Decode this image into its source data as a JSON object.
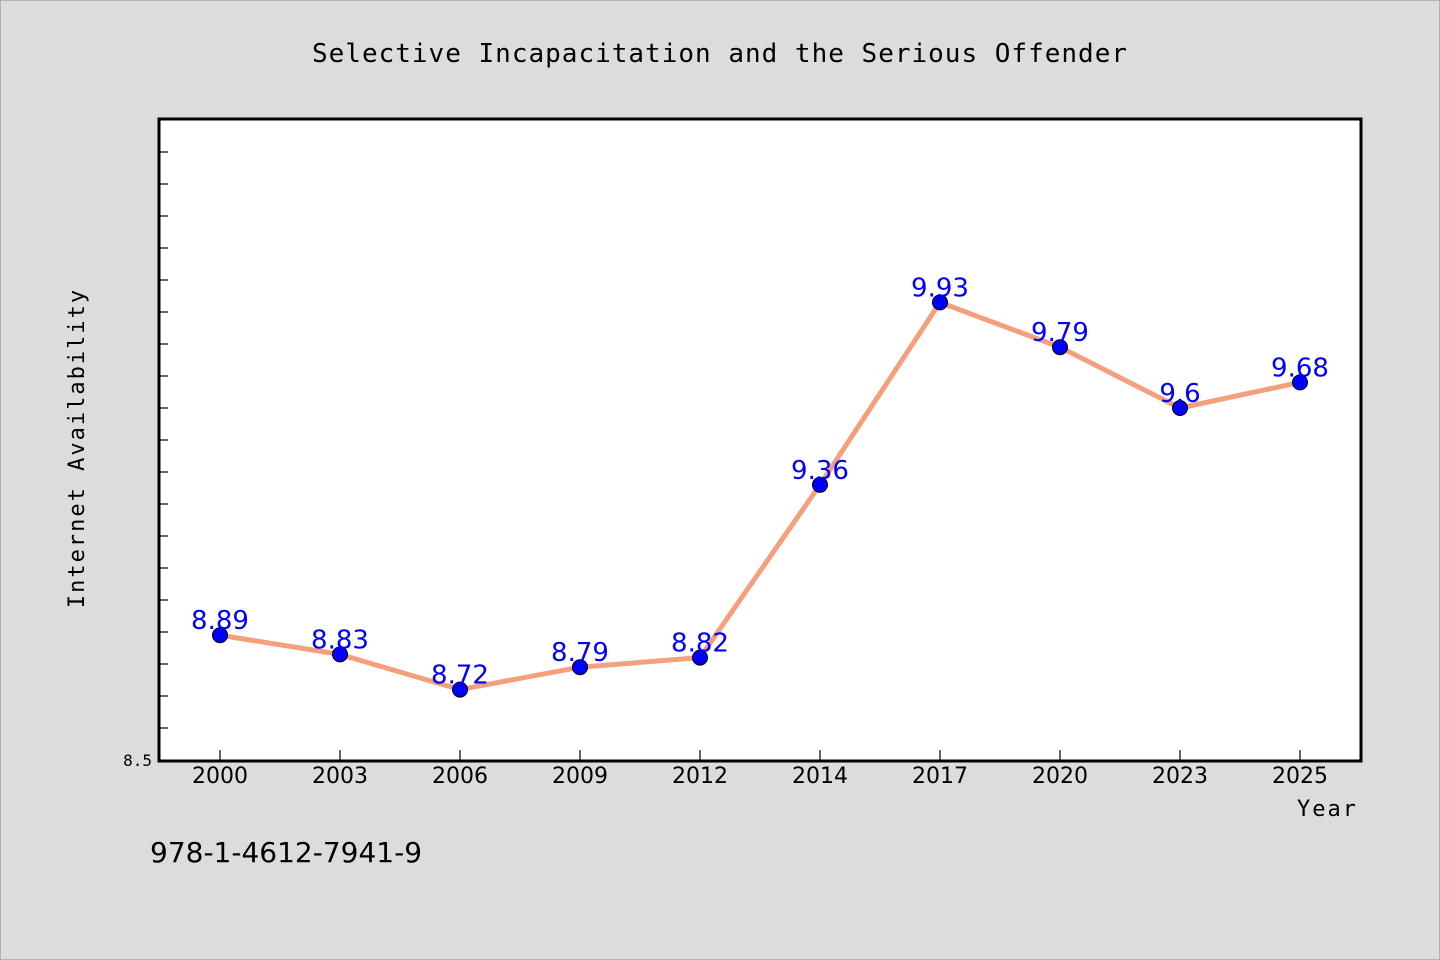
{
  "chart_data": {
    "type": "line",
    "title": "Selective Incapacitation and the Serious Offender",
    "xlabel": "Year",
    "ylabel": "Internet Availability",
    "categories": [
      "2000",
      "2003",
      "2006",
      "2009",
      "2012",
      "2014",
      "2017",
      "2020",
      "2023",
      "2025"
    ],
    "series": [
      {
        "values": [
          8.89,
          8.83,
          8.72,
          8.79,
          8.82,
          9.36,
          9.93,
          9.79,
          9.6,
          9.68
        ],
        "data_labels": [
          "8.89",
          "8.83",
          "8.72",
          "8.79",
          "8.82",
          "9.36",
          "9.93",
          "9.79",
          "9.6",
          "9.68"
        ]
      }
    ],
    "ylim": [
      8.5,
      10.5
    ],
    "yticks_labeled": [
      "8.5"
    ],
    "grid": false,
    "legend": "none",
    "colors": {
      "background": "#dcdcdc",
      "plot_background": "#ffffff",
      "line": "#f4a07c",
      "marker": "#0000ff",
      "data_label": "#0000ff"
    }
  },
  "footer": {
    "isbn": "978-1-4612-7941-9"
  }
}
